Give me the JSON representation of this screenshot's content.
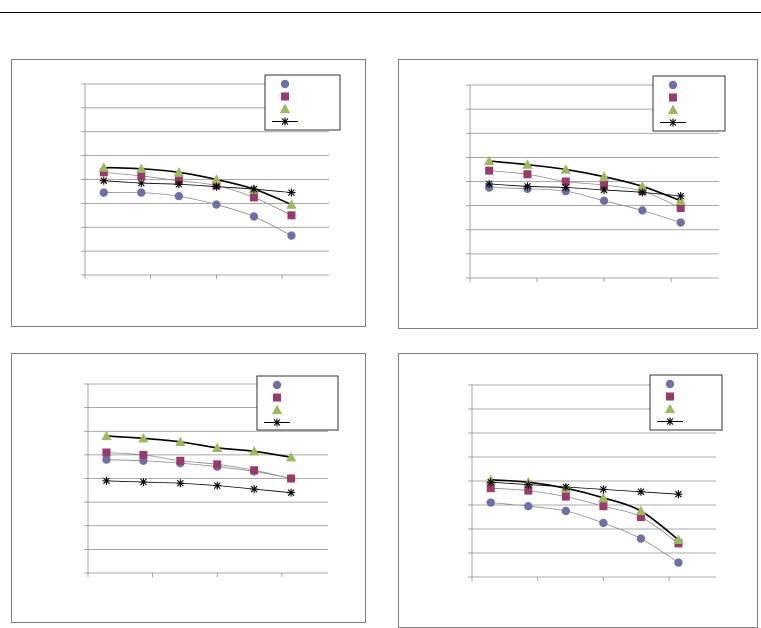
{
  "chart_data": [
    {
      "type": "scatter",
      "title": "",
      "xlabel": "",
      "ylabel": "",
      "x": [
        1,
        2,
        3,
        4,
        5,
        6
      ],
      "xlim": [
        0.5,
        7
      ],
      "ylim": [
        0,
        8
      ],
      "grid": "horizontal",
      "legend": "top-right",
      "series": [
        {
          "marker": "circle",
          "color": "#6f6fa8",
          "line": "thin",
          "values": [
            3.45,
            3.45,
            3.3,
            2.95,
            2.45,
            1.65
          ]
        },
        {
          "marker": "square",
          "color": "#9b3a6a",
          "line": "thin",
          "values": [
            4.3,
            4.15,
            3.95,
            3.75,
            3.25,
            2.5
          ]
        },
        {
          "marker": "triangle",
          "color": "#9bbb59",
          "line": "bold",
          "values": [
            4.5,
            4.45,
            4.3,
            4.0,
            3.6,
            2.95
          ]
        },
        {
          "marker": "star",
          "color": "#000000",
          "line": "thin",
          "values": [
            3.95,
            3.85,
            3.8,
            3.7,
            3.6,
            3.45
          ]
        }
      ]
    },
    {
      "type": "scatter",
      "title": "",
      "xlabel": "",
      "ylabel": "",
      "x": [
        1,
        2,
        3,
        4,
        5,
        6
      ],
      "xlim": [
        0.5,
        7
      ],
      "ylim": [
        0,
        8
      ],
      "grid": "horizontal",
      "legend": "top-right",
      "series": [
        {
          "marker": "circle",
          "color": "#6f6fa8",
          "line": "thin",
          "values": [
            3.75,
            3.7,
            3.6,
            3.2,
            2.8,
            2.3
          ]
        },
        {
          "marker": "square",
          "color": "#9b3a6a",
          "line": "thin",
          "values": [
            4.45,
            4.3,
            4.0,
            3.85,
            3.6,
            2.9
          ]
        },
        {
          "marker": "triangle",
          "color": "#9bbb59",
          "line": "bold",
          "values": [
            4.85,
            4.7,
            4.5,
            4.2,
            3.8,
            3.2
          ]
        },
        {
          "marker": "star",
          "color": "#000000",
          "line": "thin",
          "values": [
            3.9,
            3.8,
            3.75,
            3.65,
            3.55,
            3.4
          ]
        }
      ]
    },
    {
      "type": "scatter",
      "title": "",
      "xlabel": "",
      "ylabel": "",
      "x": [
        1,
        2,
        3,
        4,
        5,
        6
      ],
      "xlim": [
        0.5,
        7
      ],
      "ylim": [
        0,
        8
      ],
      "grid": "horizontal",
      "legend": "top-right",
      "series": [
        {
          "marker": "circle",
          "color": "#6f6fa8",
          "line": "thin",
          "values": [
            4.8,
            4.75,
            4.65,
            4.5,
            4.3,
            4.0
          ]
        },
        {
          "marker": "square",
          "color": "#9b3a6a",
          "line": "thin",
          "values": [
            5.1,
            5.0,
            4.75,
            4.6,
            4.35,
            4.0
          ]
        },
        {
          "marker": "triangle",
          "color": "#9bbb59",
          "line": "bold",
          "values": [
            5.8,
            5.7,
            5.55,
            5.3,
            5.15,
            4.9
          ]
        },
        {
          "marker": "star",
          "color": "#000000",
          "line": "thin",
          "values": [
            3.9,
            3.85,
            3.8,
            3.7,
            3.55,
            3.4
          ]
        }
      ]
    },
    {
      "type": "scatter",
      "title": "",
      "xlabel": "",
      "ylabel": "",
      "x": [
        1,
        2,
        3,
        4,
        5,
        6
      ],
      "xlim": [
        0.5,
        7
      ],
      "ylim": [
        0,
        8
      ],
      "grid": "horizontal",
      "legend": "top-right",
      "series": [
        {
          "marker": "circle",
          "color": "#6f6fa8",
          "line": "thin",
          "values": [
            3.1,
            2.95,
            2.75,
            2.25,
            1.6,
            0.6
          ]
        },
        {
          "marker": "square",
          "color": "#9b3a6a",
          "line": "thin",
          "values": [
            3.7,
            3.6,
            3.35,
            2.95,
            2.5,
            1.4
          ]
        },
        {
          "marker": "triangle",
          "color": "#9bbb59",
          "line": "bold",
          "values": [
            4.05,
            3.95,
            3.7,
            3.3,
            2.75,
            1.55
          ]
        },
        {
          "marker": "star",
          "color": "#000000",
          "line": "thin",
          "values": [
            3.95,
            3.85,
            3.75,
            3.65,
            3.55,
            3.45
          ]
        }
      ]
    }
  ]
}
